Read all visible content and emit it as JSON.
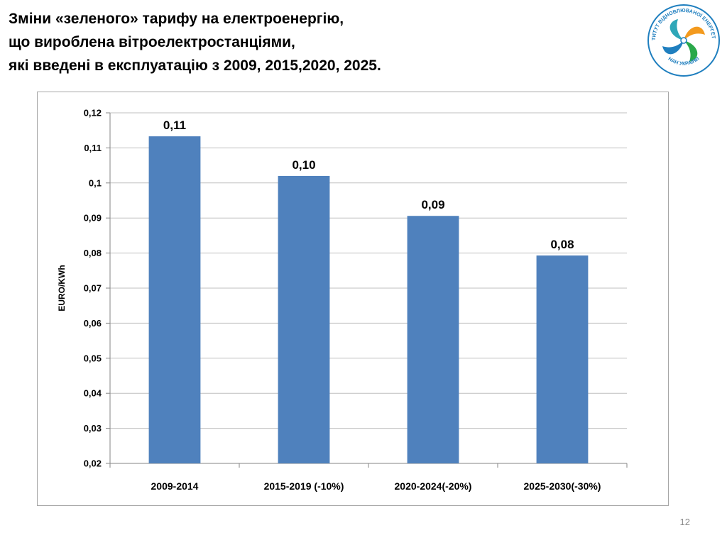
{
  "slide": {
    "title_lines": [
      "Зміни «зеленого» тарифу на електроенергію,",
      "що вироблена вітроелектростанціями,",
      "які введені в експлуатацію з 2009, 2015,2020, 2025."
    ],
    "page_number": "12",
    "logo_text_top": "ІНСТИТУТ ВІДНОВЛЮВАНОЇ ЕНЕРГЕТИКИ",
    "logo_text_bottom": "НАН УКРАЇНИ"
  },
  "colors": {
    "bar": "#4f81bd",
    "grid": "#bfbfbf",
    "axis": "#868686",
    "logo_blue": "#1f7fbf",
    "logo_orange": "#f39a1e",
    "logo_green": "#2aa84a",
    "logo_teal": "#2fa7b8"
  },
  "chart_data": {
    "type": "bar",
    "categories": [
      "2009-2014",
      "2015-2019 (-10%)",
      "2020-2024(-20%)",
      "2025-2030(-30%)"
    ],
    "values": [
      0.1133,
      0.102,
      0.0906,
      0.0793
    ],
    "data_labels": [
      "0,11",
      "0,10",
      "0,09",
      "0,08"
    ],
    "ylabel": "EURO/KWh",
    "xlabel": "",
    "ylim": [
      0.02,
      0.12
    ],
    "yticks": [
      {
        "value": 0.02,
        "label": "0,02"
      },
      {
        "value": 0.03,
        "label": "0,03"
      },
      {
        "value": 0.04,
        "label": "0,04"
      },
      {
        "value": 0.05,
        "label": "0,05"
      },
      {
        "value": 0.06,
        "label": "0,06"
      },
      {
        "value": 0.07,
        "label": "0,07"
      },
      {
        "value": 0.08,
        "label": "0,08"
      },
      {
        "value": 0.09,
        "label": "0,09"
      },
      {
        "value": 0.1,
        "label": "0,1"
      },
      {
        "value": 0.11,
        "label": "0,11"
      },
      {
        "value": 0.12,
        "label": "0,12"
      }
    ],
    "grid": true,
    "legend": "none"
  }
}
